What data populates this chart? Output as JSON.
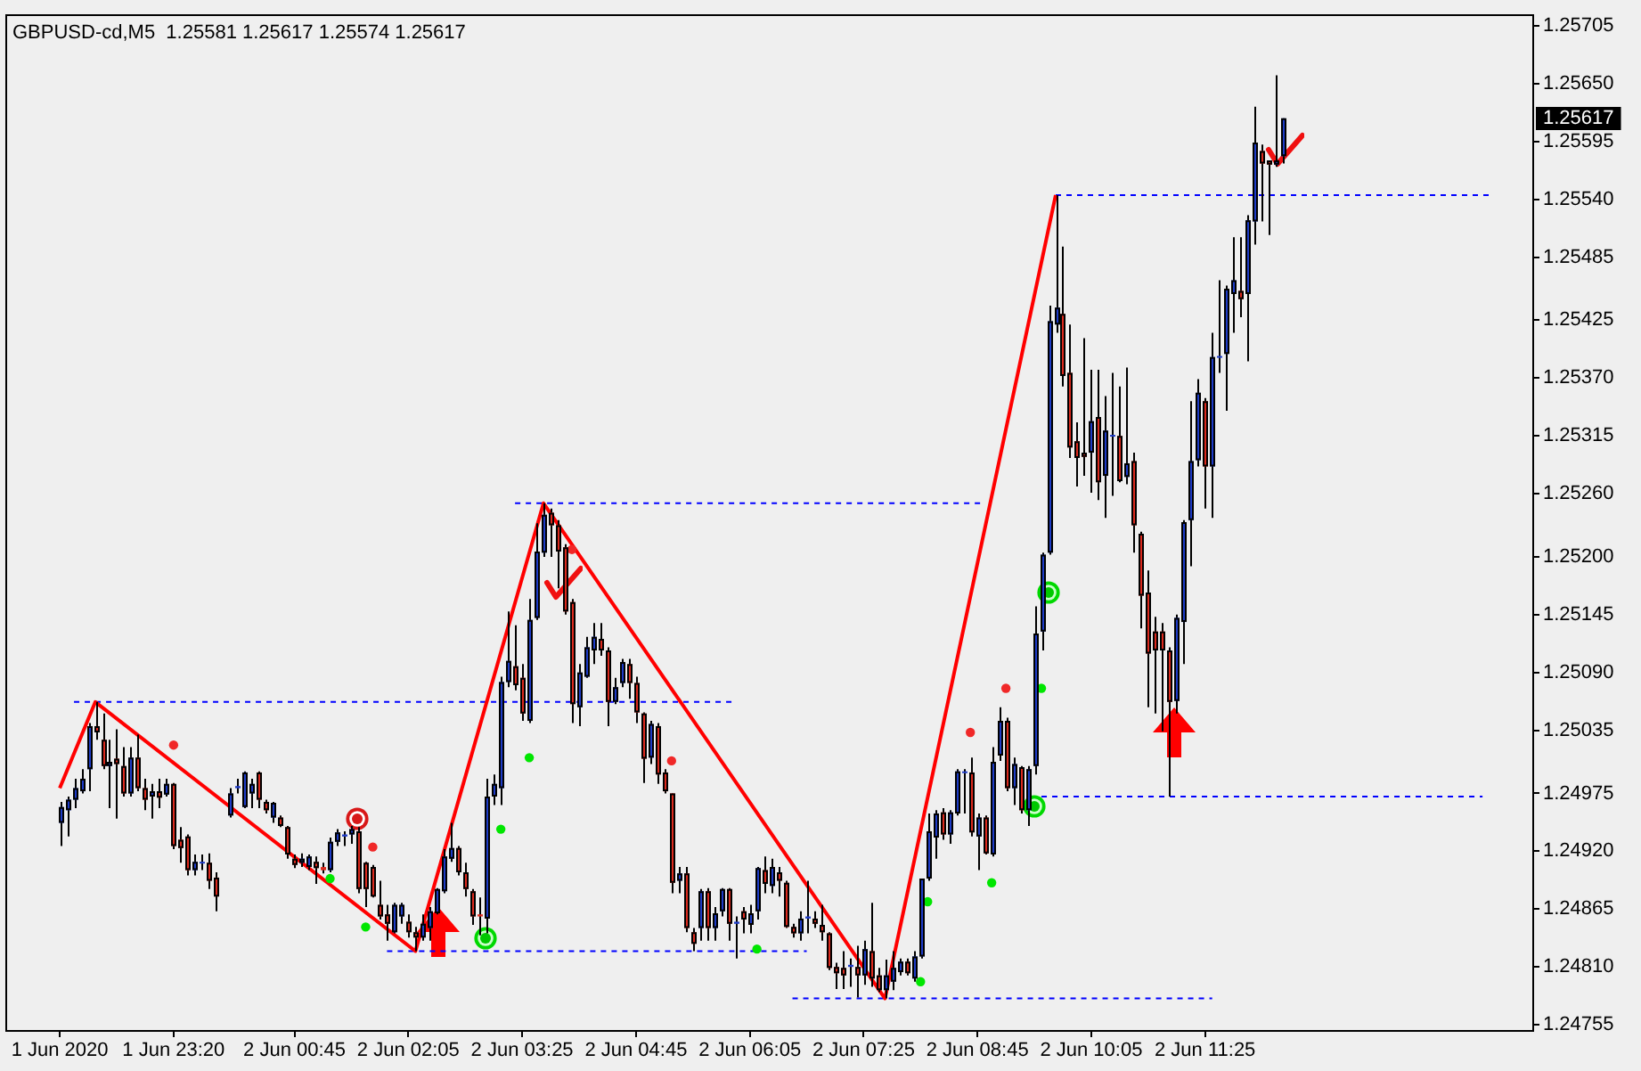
{
  "chart_data": {
    "type": "candlestick",
    "title": "GBPUSD-cd,M5  1.25581 1.25617 1.25574 1.25617",
    "xlim": [
      "2020-06-01T21:23",
      "2020-06-02T15:15"
    ],
    "xticks": [
      {
        "value": "2020-06-01T22:00",
        "label": "1 Jun 2020"
      },
      {
        "value": "2020-06-01T23:20",
        "label": "1 Jun 23:20"
      },
      {
        "value": "2020-06-02T00:45",
        "label": "2 Jun 00:45"
      },
      {
        "value": "2020-06-02T02:05",
        "label": "2 Jun 02:05"
      },
      {
        "value": "2020-06-02T03:25",
        "label": "2 Jun 03:25"
      },
      {
        "value": "2020-06-02T04:45",
        "label": "2 Jun 04:45"
      },
      {
        "value": "2020-06-02T06:05",
        "label": "2 Jun 06:05"
      },
      {
        "value": "2020-06-02T07:25",
        "label": "2 Jun 07:25"
      },
      {
        "value": "2020-06-02T08:45",
        "label": "2 Jun 08:45"
      },
      {
        "value": "2020-06-02T10:05",
        "label": "2 Jun 10:05"
      },
      {
        "value": "2020-06-02T11:25",
        "label": "2 Jun 11:25"
      }
    ],
    "ylim": [
      1.2475,
      1.25715
    ],
    "yticks": [
      1.24755,
      {
        "value": 1.2481,
        "label": "1.24810"
      },
      1.24865,
      {
        "value": 1.2492,
        "label": "1.24920"
      },
      1.24975,
      1.25035,
      {
        "value": 1.2509,
        "label": "1.25090"
      },
      1.25145,
      {
        "value": 1.252,
        "label": "1.25200"
      },
      {
        "value": 1.2526,
        "label": "1.25260"
      },
      1.25315,
      {
        "value": 1.2537,
        "label": "1.25370"
      },
      1.25425,
      1.25485,
      {
        "value": 1.2554,
        "label": "1.25540"
      },
      1.25595,
      {
        "value": 1.2565,
        "label": "1.25650"
      },
      1.25705
    ],
    "x": [
      "2020-06-01T22:00",
      "2020-06-01T22:05",
      "2020-06-01T22:10",
      "2020-06-01T22:15",
      "2020-06-01T22:20",
      "2020-06-01T22:25",
      "2020-06-01T22:30",
      "2020-06-01T22:35",
      "2020-06-01T22:40",
      "2020-06-01T22:45",
      "2020-06-01T22:50",
      "2020-06-01T22:55",
      "2020-06-01T23:00",
      "2020-06-01T23:05",
      "2020-06-01T23:10",
      "2020-06-01T23:15",
      "2020-06-01T23:20",
      "2020-06-01T23:25",
      "2020-06-01T23:30",
      "2020-06-01T23:35",
      "2020-06-01T23:40",
      "2020-06-01T23:45",
      "2020-06-01T23:50",
      "2020-06-02T00:00",
      "2020-06-02T00:05",
      "2020-06-02T00:10",
      "2020-06-02T00:15",
      "2020-06-02T00:20",
      "2020-06-02T00:25",
      "2020-06-02T00:30",
      "2020-06-02T00:35",
      "2020-06-02T00:40",
      "2020-06-02T00:45",
      "2020-06-02T00:50",
      "2020-06-02T00:55",
      "2020-06-02T01:00",
      "2020-06-02T01:05",
      "2020-06-02T01:10",
      "2020-06-02T01:15",
      "2020-06-02T01:20",
      "2020-06-02T01:25",
      "2020-06-02T01:30",
      "2020-06-02T01:35",
      "2020-06-02T01:40",
      "2020-06-02T01:45",
      "2020-06-02T01:50",
      "2020-06-02T01:55",
      "2020-06-02T02:00",
      "2020-06-02T02:05",
      "2020-06-02T02:10",
      "2020-06-02T02:15",
      "2020-06-02T02:20",
      "2020-06-02T02:25",
      "2020-06-02T02:30",
      "2020-06-02T02:35",
      "2020-06-02T02:40",
      "2020-06-02T02:45",
      "2020-06-02T02:50",
      "2020-06-02T02:55",
      "2020-06-02T03:00",
      "2020-06-02T03:05",
      "2020-06-02T03:10",
      "2020-06-02T03:15",
      "2020-06-02T03:20",
      "2020-06-02T03:25",
      "2020-06-02T03:30",
      "2020-06-02T03:35",
      "2020-06-02T03:40",
      "2020-06-02T03:45",
      "2020-06-02T03:50",
      "2020-06-02T03:55",
      "2020-06-02T04:00",
      "2020-06-02T04:05",
      "2020-06-02T04:10",
      "2020-06-02T04:15",
      "2020-06-02T04:20",
      "2020-06-02T04:25",
      "2020-06-02T04:30",
      "2020-06-02T04:35",
      "2020-06-02T04:40",
      "2020-06-02T04:45",
      "2020-06-02T04:50",
      "2020-06-02T04:55",
      "2020-06-02T05:00",
      "2020-06-02T05:05",
      "2020-06-02T05:10",
      "2020-06-02T05:15",
      "2020-06-02T05:20",
      "2020-06-02T05:25",
      "2020-06-02T05:30",
      "2020-06-02T05:35",
      "2020-06-02T05:40",
      "2020-06-02T05:45",
      "2020-06-02T05:50",
      "2020-06-02T05:55",
      "2020-06-02T06:00",
      "2020-06-02T06:05",
      "2020-06-02T06:10",
      "2020-06-02T06:15",
      "2020-06-02T06:20",
      "2020-06-02T06:25",
      "2020-06-02T06:30",
      "2020-06-02T06:35",
      "2020-06-02T06:40",
      "2020-06-02T06:45",
      "2020-06-02T06:50",
      "2020-06-02T06:55",
      "2020-06-02T07:00",
      "2020-06-02T07:05",
      "2020-06-02T07:10",
      "2020-06-02T07:15",
      "2020-06-02T07:20",
      "2020-06-02T07:25",
      "2020-06-02T07:30",
      "2020-06-02T07:35",
      "2020-06-02T07:40",
      "2020-06-02T07:45",
      "2020-06-02T07:50",
      "2020-06-02T07:55",
      "2020-06-02T08:00",
      "2020-06-02T08:05",
      "2020-06-02T08:10",
      "2020-06-02T08:15",
      "2020-06-02T08:20",
      "2020-06-02T08:25",
      "2020-06-02T08:30",
      "2020-06-02T08:35",
      "2020-06-02T08:40",
      "2020-06-02T08:45",
      "2020-06-02T08:50",
      "2020-06-02T08:55",
      "2020-06-02T09:00",
      "2020-06-02T09:05",
      "2020-06-02T09:10",
      "2020-06-02T09:15",
      "2020-06-02T09:20",
      "2020-06-02T09:25",
      "2020-06-02T09:30",
      "2020-06-02T09:35",
      "2020-06-02T09:40",
      "2020-06-02T09:45",
      "2020-06-02T09:50",
      "2020-06-02T09:55",
      "2020-06-02T10:00",
      "2020-06-02T10:05",
      "2020-06-02T10:10",
      "2020-06-02T10:15",
      "2020-06-02T10:20",
      "2020-06-02T10:25",
      "2020-06-02T10:30",
      "2020-06-02T10:35",
      "2020-06-02T10:40",
      "2020-06-02T10:45",
      "2020-06-02T10:50",
      "2020-06-02T10:55",
      "2020-06-02T11:00",
      "2020-06-02T11:05",
      "2020-06-02T11:10",
      "2020-06-02T11:15",
      "2020-06-02T11:20",
      "2020-06-02T11:25",
      "2020-06-02T11:30",
      "2020-06-02T11:35",
      "2020-06-02T11:40",
      "2020-06-02T11:45",
      "2020-06-02T11:50",
      "2020-06-02T11:55",
      "2020-06-02T12:00",
      "2020-06-02T12:05",
      "2020-06-02T12:10",
      "2020-06-02T12:15",
      "2020-06-02T12:20"
    ],
    "ohlc": [
      [
        1.24947,
        1.24967,
        1.24925,
        1.24962
      ],
      [
        1.24959,
        1.24972,
        1.24934,
        1.24969
      ],
      [
        1.24969,
        1.24989,
        1.24961,
        1.2498
      ],
      [
        1.24977,
        1.24998,
        1.24975,
        1.24989
      ],
      [
        1.24998,
        1.25042,
        1.24977,
        1.25039
      ],
      [
        1.25039,
        1.25062,
        1.25026,
        1.25033
      ],
      [
        1.25026,
        1.25051,
        1.24998,
        1.25001
      ],
      [
        1.25001,
        1.25026,
        1.24961,
        1.25005
      ],
      [
        1.25008,
        1.25036,
        1.24951,
        1.25003
      ],
      [
        1.25001,
        1.25019,
        1.24972,
        1.24975
      ],
      [
        1.24975,
        1.25019,
        1.24972,
        1.25009
      ],
      [
        1.25009,
        1.25031,
        1.24977,
        1.2498
      ],
      [
        1.2498,
        1.24989,
        1.24959,
        1.24969
      ],
      [
        1.24972,
        1.24984,
        1.24951,
        1.24977
      ],
      [
        1.24977,
        1.24989,
        1.24961,
        1.24971
      ],
      [
        1.24974,
        1.24989,
        1.24972,
        1.24984
      ],
      [
        1.24984,
        1.24985,
        1.24922,
        1.24925
      ],
      [
        1.24931,
        1.24943,
        1.24909,
        1.24923
      ],
      [
        1.24934,
        1.24936,
        1.24897,
        1.24902
      ],
      [
        1.24902,
        1.24917,
        1.24897,
        1.2491
      ],
      [
        1.24909,
        1.24917,
        1.24902,
        1.2491
      ],
      [
        1.24909,
        1.24918,
        1.24884,
        1.24892
      ],
      [
        1.24895,
        1.249,
        1.24863,
        1.24877
      ],
      [
        1.24954,
        1.2498,
        1.24952,
        1.24975
      ],
      [
        1.2498,
        1.24989,
        1.24975,
        1.24982
      ],
      [
        1.24962,
        1.24996,
        1.24961,
        1.24995
      ],
      [
        1.24975,
        1.24989,
        1.24961,
        1.24984
      ],
      [
        1.24995,
        1.24996,
        1.24961,
        1.24969
      ],
      [
        1.24967,
        1.24969,
        1.24956,
        1.24959
      ],
      [
        1.24952,
        1.24967,
        1.24947,
        1.24966
      ],
      [
        1.24952,
        1.24954,
        1.24943,
        1.24944
      ],
      [
        1.24943,
        1.24944,
        1.24913,
        1.24917
      ],
      [
        1.24913,
        1.24917,
        1.24904,
        1.24907
      ],
      [
        1.24909,
        1.24918,
        1.24905,
        1.24913
      ],
      [
        1.24905,
        1.24917,
        1.24902,
        1.24915
      ],
      [
        1.2491,
        1.24915,
        1.24889,
        1.24904
      ],
      [
        1.24905,
        1.24909,
        1.24899,
        1.24902
      ],
      [
        1.24902,
        1.24933,
        1.249,
        1.24929
      ],
      [
        1.24929,
        1.24941,
        1.24925,
        1.24938
      ],
      [
        1.24934,
        1.24939,
        1.24925,
        1.24936
      ],
      [
        1.24936,
        1.24944,
        1.24927,
        1.24941
      ],
      [
        1.24939,
        1.24943,
        1.2488,
        1.24884
      ],
      [
        1.24909,
        1.2491,
        1.24867,
        1.24884
      ],
      [
        1.24905,
        1.24907,
        1.24876,
        1.24877
      ],
      [
        1.24869,
        1.24892,
        1.24855,
        1.24858
      ],
      [
        1.2486,
        1.24869,
        1.24835,
        1.24851
      ],
      [
        1.24843,
        1.24871,
        1.24842,
        1.24869
      ],
      [
        1.24858,
        1.24871,
        1.24851,
        1.24869
      ],
      [
        1.24853,
        1.2486,
        1.24838,
        1.24843
      ],
      [
        1.24843,
        1.24848,
        1.24825,
        1.24838
      ],
      [
        1.24838,
        1.2486,
        1.24835,
        1.24851
      ],
      [
        1.24847,
        1.24867,
        1.24835,
        1.24863
      ],
      [
        1.24861,
        1.24885,
        1.2486,
        1.24884
      ],
      [
        1.24882,
        1.24922,
        1.2488,
        1.24915
      ],
      [
        1.24913,
        1.24947,
        1.2491,
        1.24923
      ],
      [
        1.24923,
        1.24925,
        1.24897,
        1.249
      ],
      [
        1.249,
        1.24909,
        1.24877,
        1.24884
      ],
      [
        1.24882,
        1.24884,
        1.2485,
        1.24858
      ],
      [
        1.2486,
        1.24876,
        1.2484,
        1.24858
      ],
      [
        1.24856,
        1.24989,
        1.24842,
        1.24972
      ],
      [
        1.24972,
        1.24993,
        1.24964,
        1.24984
      ],
      [
        1.2498,
        1.25086,
        1.24964,
        1.25081
      ],
      [
        1.25081,
        1.25148,
        1.25076,
        1.25101
      ],
      [
        1.25096,
        1.25135,
        1.25073,
        1.25078
      ],
      [
        1.25085,
        1.25098,
        1.25044,
        1.25051
      ],
      [
        1.25044,
        1.2516,
        1.25042,
        1.2514
      ],
      [
        1.25142,
        1.25232,
        1.2514,
        1.25205
      ],
      [
        1.25204,
        1.25251,
        1.252,
        1.2524
      ],
      [
        1.25242,
        1.25246,
        1.252,
        1.2523
      ],
      [
        1.2523,
        1.25235,
        1.2517,
        1.25205
      ],
      [
        1.25209,
        1.25212,
        1.25145,
        1.25148
      ],
      [
        1.25157,
        1.2516,
        1.25042,
        1.2506
      ],
      [
        1.25057,
        1.25098,
        1.25039,
        1.2509
      ],
      [
        1.25086,
        1.25124,
        1.25085,
        1.25114
      ],
      [
        1.25111,
        1.25137,
        1.25098,
        1.25124
      ],
      [
        1.25122,
        1.25137,
        1.25106,
        1.25111
      ],
      [
        1.25111,
        1.25114,
        1.25039,
        1.25062
      ],
      [
        1.25062,
        1.25085,
        1.2506,
        1.25076
      ],
      [
        1.2508,
        1.25103,
        1.25076,
        1.251
      ],
      [
        1.25098,
        1.25103,
        1.25065,
        1.2508
      ],
      [
        1.2508,
        1.25086,
        1.25042,
        1.25052
      ],
      [
        1.25051,
        1.25052,
        1.24985,
        1.25008
      ],
      [
        1.25009,
        1.25044,
        1.25003,
        1.25041
      ],
      [
        1.25039,
        1.25042,
        1.24984,
        1.24993
      ],
      [
        1.24995,
        1.24998,
        1.24975,
        1.24977
      ],
      [
        1.24975,
        1.24975,
        1.2488,
        1.2489
      ],
      [
        1.24892,
        1.24905,
        1.2488,
        1.24899
      ],
      [
        1.24899,
        1.24905,
        1.24843,
        1.24847
      ],
      [
        1.24843,
        1.24847,
        1.24825,
        1.24832
      ],
      [
        1.24847,
        1.24884,
        1.24835,
        1.24882
      ],
      [
        1.24882,
        1.24885,
        1.24835,
        1.24847
      ],
      [
        1.24847,
        1.24867,
        1.24835,
        1.24861
      ],
      [
        1.24863,
        1.24885,
        1.24858,
        1.24884
      ],
      [
        1.24884,
        1.24885,
        1.24835,
        1.24851
      ],
      [
        1.24851,
        1.24858,
        1.24818,
        1.24853
      ],
      [
        1.24863,
        1.24867,
        1.24842,
        1.24855
      ],
      [
        1.2485,
        1.24869,
        1.24842,
        1.24861
      ],
      [
        1.24863,
        1.24905,
        1.24855,
        1.24904
      ],
      [
        1.24902,
        1.24915,
        1.2488,
        1.24889
      ],
      [
        1.24887,
        1.24913,
        1.2488,
        1.24905
      ],
      [
        1.249,
        1.24905,
        1.24877,
        1.24892
      ],
      [
        1.2489,
        1.24892,
        1.24847,
        1.24848
      ],
      [
        1.24848,
        1.24851,
        1.24838,
        1.24842
      ],
      [
        1.24842,
        1.24863,
        1.24835,
        1.24856
      ],
      [
        1.24856,
        1.24892,
        1.24842,
        1.24858
      ],
      [
        1.24856,
        1.24863,
        1.24847,
        1.24851
      ],
      [
        1.2485,
        1.24869,
        1.24835,
        1.24843
      ],
      [
        1.24842,
        1.24843,
        1.24807,
        1.24809
      ],
      [
        1.2481,
        1.24814,
        1.24789,
        1.24804
      ],
      [
        1.24809,
        1.24825,
        1.24789,
        1.24802
      ],
      [
        1.2481,
        1.24818,
        1.24791,
        1.24812
      ],
      [
        1.2481,
        1.2483,
        1.24781,
        1.24802
      ],
      [
        1.24802,
        1.24835,
        1.24793,
        1.24827
      ],
      [
        1.24825,
        1.24871,
        1.24791,
        1.24799
      ],
      [
        1.24802,
        1.24809,
        1.24786,
        1.24788
      ],
      [
        1.24788,
        1.24817,
        1.2478,
        1.24802
      ],
      [
        1.24796,
        1.24825,
        1.24788,
        1.24809
      ],
      [
        1.24805,
        1.24818,
        1.24802,
        1.24815
      ],
      [
        1.24815,
        1.24818,
        1.24802,
        1.24804
      ],
      [
        1.24799,
        1.24825,
        1.24796,
        1.2482
      ],
      [
        1.2482,
        1.24894,
        1.24818,
        1.24894
      ],
      [
        1.24894,
        1.24956,
        1.24892,
        1.24939
      ],
      [
        1.24933,
        1.24959,
        1.24913,
        1.24956
      ],
      [
        1.24957,
        1.24961,
        1.24931,
        1.24936
      ],
      [
        1.24936,
        1.24959,
        1.24927,
        1.24957
      ],
      [
        1.24956,
        1.24998,
        1.24954,
        1.24996
      ],
      [
        1.24995,
        1.24998,
        1.24956,
        1.24996
      ],
      [
        1.24995,
        1.25009,
        1.24934,
        1.24938
      ],
      [
        1.24934,
        1.24956,
        1.24902,
        1.24952
      ],
      [
        1.24952,
        1.24954,
        1.24917,
        1.24918
      ],
      [
        1.24917,
        1.25019,
        1.24915,
        1.25005
      ],
      [
        1.25011,
        1.25057,
        1.25006,
        1.25044
      ],
      [
        1.25044,
        1.25047,
        1.24977,
        1.2498
      ],
      [
        1.2498,
        1.25009,
        1.24964,
        1.25003
      ],
      [
        1.25,
        1.25001,
        1.24956,
        1.24959
      ],
      [
        1.24959,
        1.25001,
        1.24944,
        1.24998
      ],
      [
        1.25001,
        1.25153,
        1.24993,
        1.25127
      ],
      [
        1.25129,
        1.25204,
        1.25111,
        1.25202
      ],
      [
        1.25204,
        1.25439,
        1.25202,
        1.25424
      ],
      [
        1.25421,
        1.25544,
        1.25413,
        1.25437
      ],
      [
        1.25431,
        1.25495,
        1.25362,
        1.25372
      ],
      [
        1.25375,
        1.25421,
        1.25294,
        1.25304
      ],
      [
        1.2531,
        1.25328,
        1.25267,
        1.25294
      ],
      [
        1.25299,
        1.25408,
        1.25277,
        1.25295
      ],
      [
        1.25299,
        1.25378,
        1.25261,
        1.25329
      ],
      [
        1.25333,
        1.25378,
        1.25254,
        1.25271
      ],
      [
        1.25277,
        1.25353,
        1.25237,
        1.2532
      ],
      [
        1.25315,
        1.25375,
        1.25258,
        1.25316
      ],
      [
        1.25315,
        1.25362,
        1.25271,
        1.25272
      ],
      [
        1.25276,
        1.2538,
        1.25269,
        1.25289
      ],
      [
        1.25291,
        1.25299,
        1.25204,
        1.2523
      ],
      [
        1.25222,
        1.25224,
        1.25132,
        1.25163
      ],
      [
        1.25166,
        1.25187,
        1.25057,
        1.25108
      ],
      [
        1.25129,
        1.25143,
        1.25051,
        1.25111
      ],
      [
        1.25129,
        1.25137,
        1.25034,
        1.25111
      ],
      [
        1.25111,
        1.25114,
        1.24972,
        1.25062
      ],
      [
        1.25063,
        1.25145,
        1.25051,
        1.25142
      ],
      [
        1.25138,
        1.25235,
        1.25098,
        1.25233
      ],
      [
        1.25235,
        1.25348,
        1.25191,
        1.25291
      ],
      [
        1.25292,
        1.25369,
        1.25286,
        1.25356
      ],
      [
        1.25348,
        1.25351,
        1.25246,
        1.25286
      ],
      [
        1.25286,
        1.25413,
        1.25237,
        1.2539
      ],
      [
        1.2539,
        1.25463,
        1.25375,
        1.25391
      ],
      [
        1.25393,
        1.25458,
        1.25339,
        1.25455
      ],
      [
        1.2545,
        1.25504,
        1.25413,
        1.25463
      ],
      [
        1.25453,
        1.25504,
        1.25428,
        1.25445
      ],
      [
        1.2545,
        1.25525,
        1.25386,
        1.2552
      ],
      [
        1.25519,
        1.25628,
        1.25497,
        1.25594
      ],
      [
        1.25586,
        1.25592,
        1.25519,
        1.25574
      ],
      [
        1.25577,
        1.25577,
        1.25506,
        1.25573
      ],
      [
        1.25573,
        1.25658,
        1.25571,
        1.25577
      ],
      [
        1.25581,
        1.25617,
        1.25574,
        1.25617
      ]
    ],
    "colors": [
      "#1e3cc8",
      "#1e3cc8",
      "#1e3cc8",
      "#1e3cc8",
      "#1e3cc8",
      "#dc2a1e",
      "#dc2a1e",
      "#1e3cc8",
      "#dc2a1e",
      "#dc2a1e",
      "#1e3cc8",
      "#dc2a1e",
      "#dc2a1e",
      "#1e3cc8",
      "#dc2a1e",
      "#1e3cc8",
      "#dc2a1e",
      "#dc2a1e",
      "#dc2a1e",
      "#1e3cc8",
      "#1e3cc8",
      "#dc2a1e",
      "#dc2a1e",
      "#1e3cc8",
      "#1e3cc8",
      "#1e3cc8",
      "#1e3cc8",
      "#dc2a1e",
      "#dc2a1e",
      "#1e3cc8",
      "#dc2a1e",
      "#dc2a1e",
      "#dc2a1e",
      "#1e3cc8",
      "#1e3cc8",
      "#dc2a1e",
      "#dc2a1e",
      "#1e3cc8",
      "#1e3cc8",
      "#1e3cc8",
      "#1e3cc8",
      "#dc2a1e",
      "#dc2a1e",
      "#dc2a1e",
      "#dc2a1e",
      "#dc2a1e",
      "#1e3cc8",
      "#1e3cc8",
      "#dc2a1e",
      "#dc2a1e",
      "#1e3cc8",
      "#1e3cc8",
      "#1e3cc8",
      "#1e3cc8",
      "#1e3cc8",
      "#dc2a1e",
      "#dc2a1e",
      "#dc2a1e",
      "#dc2a1e",
      "#1e3cc8",
      "#1e3cc8",
      "#1e3cc8",
      "#1e3cc8",
      "#dc2a1e",
      "#dc2a1e",
      "#1e3cc8",
      "#1e3cc8",
      "#1e3cc8",
      "#dc2a1e",
      "#dc2a1e",
      "#dc2a1e",
      "#dc2a1e",
      "#1e3cc8",
      "#1e3cc8",
      "#1e3cc8",
      "#dc2a1e",
      "#dc2a1e",
      "#1e3cc8",
      "#1e3cc8",
      "#dc2a1e",
      "#dc2a1e",
      "#dc2a1e",
      "#1e3cc8",
      "#dc2a1e",
      "#dc2a1e",
      "#dc2a1e",
      "#1e3cc8",
      "#dc2a1e",
      "#dc2a1e",
      "#1e3cc8",
      "#dc2a1e",
      "#1e3cc8",
      "#1e3cc8",
      "#dc2a1e",
      "#1e3cc8",
      "#dc2a1e",
      "#1e3cc8",
      "#1e3cc8",
      "#dc2a1e",
      "#1e3cc8",
      "#dc2a1e",
      "#dc2a1e",
      "#dc2a1e",
      "#1e3cc8",
      "#1e3cc8",
      "#dc2a1e",
      "#dc2a1e",
      "#dc2a1e",
      "#dc2a1e",
      "#dc2a1e",
      "#1e3cc8",
      "#dc2a1e",
      "#1e3cc8",
      "#dc2a1e",
      "#dc2a1e",
      "#1e3cc8",
      "#1e3cc8",
      "#1e3cc8",
      "#dc2a1e",
      "#1e3cc8",
      "#1e3cc8",
      "#1e3cc8",
      "#1e3cc8",
      "#dc2a1e",
      "#1e3cc8",
      "#1e3cc8",
      "#1e3cc8",
      "#dc2a1e",
      "#1e3cc8",
      "#dc2a1e",
      "#1e3cc8",
      "#1e3cc8",
      "#dc2a1e",
      "#1e3cc8",
      "#dc2a1e",
      "#1e3cc8",
      "#1e3cc8",
      "#1e3cc8",
      "#1e3cc8",
      "#1e3cc8",
      "#dc2a1e",
      "#dc2a1e",
      "#dc2a1e",
      "#dc2a1e",
      "#1e3cc8",
      "#dc2a1e",
      "#1e3cc8",
      "#1e3cc8",
      "#dc2a1e",
      "#1e3cc8",
      "#dc2a1e",
      "#dc2a1e",
      "#dc2a1e",
      "#dc2a1e",
      "#dc2a1e",
      "#dc2a1e",
      "#1e3cc8",
      "#1e3cc8",
      "#1e3cc8",
      "#1e3cc8",
      "#dc2a1e",
      "#1e3cc8",
      "#1e3cc8",
      "#1e3cc8",
      "#1e3cc8",
      "#dc2a1e",
      "#1e3cc8",
      "#1e3cc8",
      "#dc2a1e",
      "#dc2a1e",
      "#1e3cc8",
      "#1e3cc8"
    ],
    "series": [
      {
        "type": "line",
        "color": "#ff0000",
        "x": [
          "2020-06-01T22:00",
          "2020-06-01T22:25",
          "2020-06-02T02:10",
          "2020-06-02T03:40",
          "2020-06-02T07:40",
          "2020-06-02T09:40"
        ],
        "values": [
          1.2498,
          1.25062,
          1.24825,
          1.25251,
          1.2478,
          1.25544
        ]
      },
      {
        "type": "line",
        "color": "#0000ff",
        "line_style": "dashed",
        "x": [
          "2020-06-01T22:10",
          "2020-06-02T05:55"
        ],
        "values": [
          1.25062,
          1.25062
        ]
      },
      {
        "type": "line",
        "color": "#0000ff",
        "line_style": "dashed",
        "x": [
          "2020-06-02T01:50",
          "2020-06-02T06:45"
        ],
        "values": [
          1.24825,
          1.24825
        ]
      },
      {
        "type": "line",
        "color": "#0000ff",
        "line_style": "dashed",
        "x": [
          "2020-06-02T03:20",
          "2020-06-02T08:50"
        ],
        "values": [
          1.25251,
          1.25251
        ]
      },
      {
        "type": "line",
        "color": "#0000ff",
        "line_style": "dashed",
        "x": [
          "2020-06-02T06:35",
          "2020-06-02T11:30"
        ],
        "values": [
          1.2478,
          1.2478
        ]
      },
      {
        "type": "line",
        "color": "#0000ff",
        "line_style": "dashed",
        "x": [
          "2020-06-02T09:40",
          "2020-06-02T14:45"
        ],
        "values": [
          1.25544,
          1.25544
        ]
      },
      {
        "type": "line",
        "color": "#0000ff",
        "line_style": "dashed",
        "x": [
          "2020-06-02T09:30",
          "2020-06-02T14:40"
        ],
        "values": [
          1.24972,
          1.24972
        ]
      },
      {
        "type": "scatter",
        "color": "#00e600",
        "marker": "circle",
        "x": [
          "2020-06-02T01:10",
          "2020-06-02T01:35",
          "2020-06-02T03:10",
          "2020-06-02T03:30",
          "2020-06-02T06:10",
          "2020-06-02T08:05",
          "2020-06-02T08:10",
          "2020-06-02T08:55",
          "2020-06-02T09:30"
        ],
        "values": [
          1.24894,
          1.24848,
          1.24941,
          1.25009,
          1.24827,
          1.24796,
          1.24872,
          1.2489,
          1.25075
        ]
      },
      {
        "type": "scatter",
        "color": "#f02828",
        "marker": "circle",
        "x": [
          "2020-06-01T23:20",
          "2020-06-02T01:40",
          "2020-06-02T04:00",
          "2020-06-02T05:10",
          "2020-06-02T08:40",
          "2020-06-02T09:05"
        ],
        "values": [
          1.25021,
          1.24924,
          1.25207,
          1.25006,
          1.25033,
          1.25075
        ]
      }
    ],
    "annotations": [
      "1.25617"
    ]
  }
}
